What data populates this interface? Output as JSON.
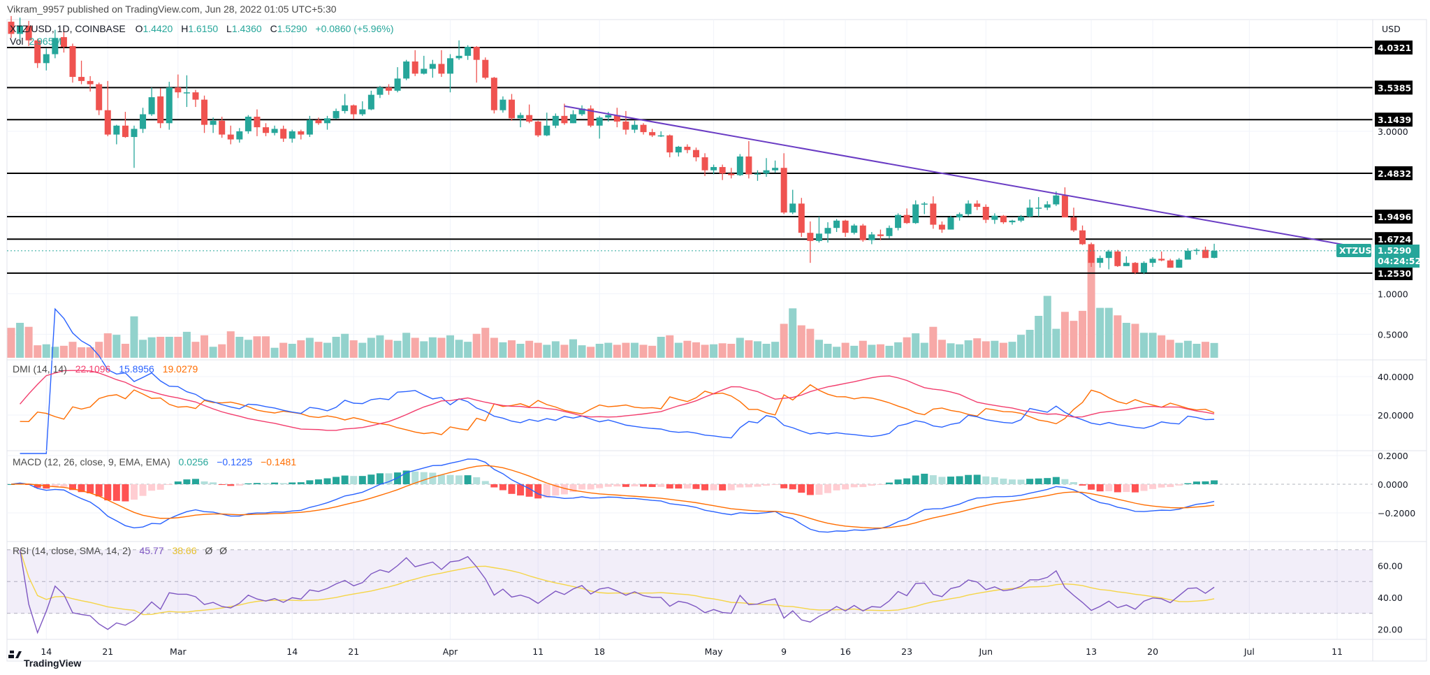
{
  "header": {
    "published": "Vikram_9957 published on TradingView.com, Jun 28, 2022 01:05 UTC+5:30"
  },
  "legend": {
    "symbol": "XTZ/USD, 1D, COINBASE",
    "o_label": "O",
    "o": "1.4420",
    "h_label": "H",
    "h": "1.6150",
    "l_label": "L",
    "l": "1.4360",
    "c_label": "C",
    "c": "1.5290",
    "change": "+0.0860 (+5.96%)",
    "vol_label": "Vol",
    "vol": "2.965M"
  },
  "price_axis": {
    "currency": "USD",
    "plain_ticks": [
      {
        "value": 3.0,
        "label": "3.0000"
      },
      {
        "value": 1.0,
        "label": "1.0000"
      },
      {
        "value": 0.5,
        "label": "0.5000"
      }
    ],
    "levels": [
      {
        "value": 4.0321,
        "label": "4.0321"
      },
      {
        "value": 3.5385,
        "label": "3.5385"
      },
      {
        "value": 3.1439,
        "label": "3.1439"
      },
      {
        "value": 2.4832,
        "label": "2.4832"
      },
      {
        "value": 1.9496,
        "label": "1.9496"
      },
      {
        "value": 1.6724,
        "label": "1.6724"
      },
      {
        "value": 1.253,
        "label": "1.2530"
      }
    ],
    "current": {
      "symbol_tag": "XTZUSD",
      "price": "1.5290",
      "countdown": "04:24:52",
      "value": 1.529
    }
  },
  "dmi": {
    "title": "DMI (14, 14)",
    "adx": "22.1096",
    "plus_di": "15.8956",
    "minus_di": "19.0279",
    "ticks": [
      {
        "value": 40,
        "label": "40.0000"
      },
      {
        "value": 20,
        "label": "20.0000"
      }
    ]
  },
  "macd": {
    "title": "MACD (12, 26, close, 9, EMA, EMA)",
    "hist": "0.0256",
    "macd": "−0.1225",
    "signal": "−0.1481",
    "ticks": [
      {
        "value": 0.2,
        "label": "0.2000"
      },
      {
        "value": 0,
        "label": "0.0000"
      },
      {
        "value": -0.2,
        "label": "−0.2000"
      }
    ]
  },
  "rsi": {
    "title": "RSI (14, close, SMA, 14, 2)",
    "rsi": "45.77",
    "sma": "38.66",
    "extra1": "Ø",
    "extra2": "Ø",
    "ticks": [
      {
        "value": 60,
        "label": "60.00"
      },
      {
        "value": 40,
        "label": "40.00"
      },
      {
        "value": 20,
        "label": "20.00"
      }
    ]
  },
  "footer": {
    "brand": "TradingView"
  },
  "colors": {
    "up": "#26a69a",
    "down": "#ef5350",
    "vol_up": "#92d2cc",
    "vol_down": "#f7a9a7",
    "adx": "#f23d6d",
    "plus_di": "#2962ff",
    "minus_di": "#ff6d00",
    "macd": "#2962ff",
    "signal": "#ff6d00",
    "rsi": "#7e57c2",
    "rsi_sma": "#f5d547",
    "trendline": "#6a3cc4"
  },
  "chart_data": {
    "type": "candlestick",
    "symbol": "XTZ/USD",
    "interval": "1D",
    "ohlc_by_month": {
      "2022-02": [
        [
          10,
          4.35,
          4.42,
          4.15,
          4.2
        ],
        [
          11,
          4.2,
          4.4,
          4.1,
          4.3
        ],
        [
          12,
          4.3,
          4.36,
          4.05,
          4.12
        ],
        [
          13,
          4.12,
          4.14,
          3.78,
          3.84
        ],
        [
          14,
          3.84,
          4.02,
          3.75,
          3.95
        ],
        [
          15,
          3.95,
          4.25,
          3.9,
          4.15
        ],
        [
          16,
          4.16,
          4.26,
          3.97,
          4.04
        ],
        [
          17,
          4.05,
          4.08,
          3.6,
          3.67
        ],
        [
          18,
          3.67,
          3.87,
          3.58,
          3.62
        ],
        [
          19,
          3.62,
          3.68,
          3.49,
          3.58
        ],
        [
          20,
          3.58,
          3.6,
          3.2,
          3.26
        ],
        [
          21,
          3.26,
          3.62,
          2.94,
          2.96
        ],
        [
          22,
          2.96,
          3.08,
          2.84,
          3.07
        ],
        [
          23,
          3.07,
          3.24,
          2.92,
          2.93
        ],
        [
          24,
          2.93,
          3.07,
          2.55,
          3.03
        ],
        [
          25,
          3.03,
          3.29,
          2.98,
          3.21
        ],
        [
          26,
          3.21,
          3.54,
          3.19,
          3.42
        ],
        [
          27,
          3.43,
          3.53,
          3.04,
          3.1
        ],
        [
          28,
          3.1,
          3.61,
          3.02,
          3.54
        ]
      ],
      "2022-03": [
        [
          1,
          3.54,
          3.7,
          3.41,
          3.48
        ],
        [
          2,
          3.48,
          3.69,
          3.3,
          3.48
        ],
        [
          3,
          3.48,
          3.51,
          3.3,
          3.39
        ],
        [
          4,
          3.39,
          3.44,
          2.98,
          3.08
        ],
        [
          5,
          3.08,
          3.17,
          2.98,
          3.13
        ],
        [
          6,
          3.13,
          3.18,
          2.92,
          2.96
        ],
        [
          7,
          2.96,
          3.07,
          2.84,
          2.9
        ],
        [
          8,
          2.9,
          3.04,
          2.86,
          3.0
        ],
        [
          9,
          3.0,
          3.2,
          2.97,
          3.18
        ],
        [
          10,
          3.18,
          3.27,
          2.94,
          3.05
        ],
        [
          11,
          3.05,
          3.1,
          2.94,
          2.98
        ],
        [
          12,
          2.98,
          3.07,
          2.95,
          3.03
        ],
        [
          13,
          3.03,
          3.07,
          2.87,
          2.91
        ],
        [
          14,
          2.91,
          3.02,
          2.86,
          3.0
        ],
        [
          15,
          3.0,
          3.02,
          2.9,
          2.96
        ],
        [
          16,
          2.96,
          3.19,
          2.93,
          3.14
        ],
        [
          17,
          3.14,
          3.17,
          3.08,
          3.1
        ],
        [
          18,
          3.1,
          3.19,
          3.02,
          3.16
        ],
        [
          19,
          3.16,
          3.28,
          3.15,
          3.25
        ],
        [
          20,
          3.25,
          3.46,
          3.22,
          3.32
        ],
        [
          21,
          3.32,
          3.33,
          3.15,
          3.21
        ],
        [
          22,
          3.21,
          3.37,
          3.19,
          3.27
        ],
        [
          23,
          3.27,
          3.5,
          3.26,
          3.45
        ],
        [
          24,
          3.45,
          3.56,
          3.41,
          3.54
        ],
        [
          25,
          3.54,
          3.58,
          3.45,
          3.5
        ],
        [
          26,
          3.5,
          3.79,
          3.48,
          3.65
        ],
        [
          27,
          3.65,
          3.88,
          3.63,
          3.86
        ],
        [
          28,
          3.86,
          4.0,
          3.68,
          3.71
        ],
        [
          29,
          3.71,
          3.93,
          3.7,
          3.77
        ],
        [
          30,
          3.77,
          3.88,
          3.66,
          3.83
        ],
        [
          31,
          3.83,
          4.0,
          3.67,
          3.71
        ]
      ],
      "2022-04": [
        [
          1,
          3.71,
          3.95,
          3.48,
          3.9
        ],
        [
          2,
          3.9,
          4.12,
          3.88,
          3.93
        ],
        [
          3,
          3.93,
          4.06,
          3.88,
          4.04
        ],
        [
          4,
          4.04,
          4.05,
          3.6,
          3.88
        ],
        [
          5,
          3.88,
          3.91,
          3.64,
          3.66
        ],
        [
          6,
          3.66,
          3.67,
          3.22,
          3.26
        ],
        [
          7,
          3.26,
          3.43,
          3.23,
          3.39
        ],
        [
          8,
          3.39,
          3.46,
          3.13,
          3.16
        ],
        [
          9,
          3.16,
          3.23,
          3.05,
          3.2
        ],
        [
          10,
          3.2,
          3.33,
          3.1,
          3.12
        ],
        [
          11,
          3.12,
          3.13,
          2.93,
          2.95
        ],
        [
          12,
          2.95,
          3.23,
          2.94,
          3.07
        ],
        [
          13,
          3.07,
          3.22,
          3.04,
          3.19
        ],
        [
          14,
          3.19,
          3.34,
          3.08,
          3.1
        ],
        [
          15,
          3.1,
          3.26,
          3.1,
          3.21
        ],
        [
          16,
          3.21,
          3.32,
          3.19,
          3.28
        ],
        [
          17,
          3.28,
          3.32,
          3.05,
          3.07
        ],
        [
          18,
          3.07,
          3.19,
          2.91,
          3.17
        ],
        [
          19,
          3.17,
          3.24,
          3.12,
          3.2
        ],
        [
          20,
          3.2,
          3.29,
          3.05,
          3.12
        ],
        [
          21,
          3.12,
          3.25,
          2.96,
          3.02
        ],
        [
          22,
          3.02,
          3.13,
          2.98,
          3.08
        ],
        [
          23,
          3.08,
          3.1,
          2.96,
          2.99
        ],
        [
          24,
          2.99,
          3.03,
          2.93,
          2.95
        ],
        [
          25,
          2.95,
          3.0,
          2.93,
          2.95
        ],
        [
          26,
          2.95,
          2.96,
          2.68,
          2.74
        ],
        [
          27,
          2.74,
          2.82,
          2.69,
          2.81
        ],
        [
          28,
          2.81,
          2.84,
          2.73,
          2.77
        ],
        [
          29,
          2.77,
          2.8,
          2.63,
          2.68
        ],
        [
          30,
          2.68,
          2.73,
          2.45,
          2.52
        ]
      ],
      "2022-05": [
        [
          1,
          2.52,
          2.59,
          2.47,
          2.56
        ],
        [
          2,
          2.56,
          2.59,
          2.4,
          2.48
        ],
        [
          3,
          2.48,
          2.55,
          2.42,
          2.46
        ],
        [
          4,
          2.46,
          2.72,
          2.45,
          2.69
        ],
        [
          5,
          2.69,
          2.88,
          2.42,
          2.47
        ],
        [
          6,
          2.47,
          2.52,
          2.39,
          2.48
        ],
        [
          7,
          2.48,
          2.67,
          2.44,
          2.52
        ],
        [
          8,
          2.52,
          2.64,
          2.49,
          2.55
        ],
        [
          9,
          2.55,
          2.73,
          1.98,
          2.0
        ],
        [
          10,
          2.0,
          2.28,
          1.98,
          2.11
        ],
        [
          11,
          2.11,
          2.18,
          1.7,
          1.75
        ],
        [
          12,
          1.75,
          1.89,
          1.38,
          1.65
        ],
        [
          13,
          1.65,
          1.95,
          1.63,
          1.74
        ],
        [
          14,
          1.74,
          1.88,
          1.63,
          1.81
        ],
        [
          15,
          1.81,
          1.92,
          1.76,
          1.9
        ],
        [
          16,
          1.9,
          1.91,
          1.7,
          1.75
        ],
        [
          17,
          1.75,
          1.86,
          1.73,
          1.84
        ],
        [
          18,
          1.84,
          1.86,
          1.64,
          1.66
        ],
        [
          19,
          1.66,
          1.76,
          1.61,
          1.73
        ],
        [
          20,
          1.73,
          1.79,
          1.66,
          1.71
        ],
        [
          21,
          1.71,
          1.84,
          1.68,
          1.81
        ],
        [
          22,
          1.81,
          1.99,
          1.78,
          1.97
        ],
        [
          23,
          1.97,
          2.05,
          1.86,
          1.87
        ],
        [
          24,
          1.87,
          2.15,
          1.86,
          2.1
        ],
        [
          25,
          2.1,
          2.13,
          1.98,
          2.11
        ],
        [
          26,
          2.11,
          2.2,
          1.8,
          1.85
        ],
        [
          27,
          1.85,
          1.89,
          1.75,
          1.79
        ],
        [
          28,
          1.79,
          1.96,
          1.79,
          1.94
        ],
        [
          29,
          1.94,
          2.0,
          1.9,
          1.98
        ],
        [
          30,
          1.98,
          2.15,
          1.96,
          2.11
        ],
        [
          31,
          2.11,
          2.15,
          2.03,
          2.07
        ]
      ],
      "2022-06": [
        [
          1,
          2.07,
          2.1,
          1.87,
          1.91
        ],
        [
          2,
          1.91,
          1.99,
          1.86,
          1.96
        ],
        [
          3,
          1.96,
          1.97,
          1.86,
          1.88
        ],
        [
          4,
          1.88,
          1.91,
          1.85,
          1.9
        ],
        [
          5,
          1.9,
          1.97,
          1.88,
          1.95
        ],
        [
          6,
          1.95,
          2.16,
          1.94,
          2.06
        ],
        [
          7,
          2.06,
          2.19,
          1.95,
          2.06
        ],
        [
          8,
          2.06,
          2.14,
          2.03,
          2.1
        ],
        [
          9,
          2.1,
          2.26,
          2.08,
          2.21
        ],
        [
          10,
          2.21,
          2.31,
          1.95,
          1.94
        ],
        [
          11,
          1.94,
          2.06,
          1.76,
          1.78
        ],
        [
          12,
          1.78,
          1.84,
          1.6,
          1.61
        ],
        [
          13,
          1.61,
          1.63,
          1.33,
          1.38
        ],
        [
          14,
          1.38,
          1.47,
          1.32,
          1.44
        ],
        [
          15,
          1.44,
          1.54,
          1.3,
          1.52
        ],
        [
          16,
          1.52,
          1.54,
          1.33,
          1.34
        ],
        [
          17,
          1.34,
          1.46,
          1.34,
          1.38
        ],
        [
          18,
          1.38,
          1.39,
          1.24,
          1.26
        ],
        [
          19,
          1.26,
          1.4,
          1.24,
          1.38
        ],
        [
          20,
          1.38,
          1.45,
          1.33,
          1.43
        ],
        [
          21,
          1.43,
          1.52,
          1.4,
          1.41
        ],
        [
          22,
          1.41,
          1.43,
          1.32,
          1.32
        ],
        [
          23,
          1.32,
          1.44,
          1.32,
          1.42
        ],
        [
          24,
          1.42,
          1.56,
          1.42,
          1.53
        ],
        [
          25,
          1.53,
          1.56,
          1.48,
          1.54
        ],
        [
          26,
          1.54,
          1.58,
          1.44,
          1.44
        ],
        [
          27,
          1.442,
          1.615,
          1.436,
          1.529
        ]
      ]
    },
    "volume_millions": [
      6.0,
      7.0,
      6.2,
      2.5,
      2.7,
      2.2,
      2.4,
      3.2,
      2.1,
      2.1,
      3.2,
      4.9,
      4.6,
      2.8,
      8.3,
      3.6,
      4.1,
      4.2,
      4.2,
      4.2,
      5.2,
      3.2,
      4.5,
      2.2,
      2.7,
      5.3,
      4.2,
      3.6,
      4.3,
      4.3,
      2.0,
      3.0,
      2.8,
      3.5,
      4.0,
      3.2,
      3.0,
      4.2,
      4.8,
      3.5,
      3.0,
      4.0,
      4.5,
      3.6,
      3.4,
      5.0,
      4.0,
      3.3,
      4.1,
      4.0,
      4.5,
      3.6,
      3.2,
      4.8,
      6.0,
      4.0,
      3.1,
      3.5,
      2.8,
      3.4,
      3.0,
      2.6,
      3.3,
      2.6,
      3.7,
      2.5,
      2.2,
      2.8,
      3.0,
      2.6,
      3.0,
      3.0,
      2.6,
      2.4,
      4.2,
      4.5,
      3.0,
      3.4,
      3.1,
      2.6,
      2.7,
      2.9,
      2.8,
      4.0,
      3.5,
      3.3,
      2.8,
      3.2,
      6.8,
      9.9,
      6.5,
      5.8,
      3.6,
      2.8,
      2.2,
      3.0,
      2.4,
      3.4,
      2.6,
      2.7,
      2.4,
      3.1,
      4.1,
      4.9,
      3.0,
      6.2,
      3.6,
      2.9,
      2.7,
      3.5,
      3.9,
      3.3,
      3.4,
      3.0,
      3.2,
      4.6,
      5.6,
      8.4,
      12.4,
      5.8,
      9.2,
      7.4,
      9.4,
      21.6,
      10.0,
      10.0,
      8.5,
      7.0,
      6.8,
      5.0,
      5.0,
      4.5,
      3.6,
      3.0,
      3.4,
      2.8,
      3.2,
      2.965
    ],
    "trendline": [
      [
        "2022-04-14",
        3.31
      ],
      [
        "2022-07-13",
        1.58
      ]
    ],
    "x_ticks": [
      {
        "date": "2022-02-14",
        "label": "14"
      },
      {
        "date": "2022-02-21",
        "label": "21"
      },
      {
        "date": "2022-03-01",
        "label": "Mar"
      },
      {
        "date": "2022-03-14",
        "label": "14"
      },
      {
        "date": "2022-03-21",
        "label": "21"
      },
      {
        "date": "2022-04-01",
        "label": "Apr"
      },
      {
        "date": "2022-04-11",
        "label": "11"
      },
      {
        "date": "2022-04-18",
        "label": "18"
      },
      {
        "date": "2022-05-01",
        "label": "May"
      },
      {
        "date": "2022-05-09",
        "label": "9"
      },
      {
        "date": "2022-05-16",
        "label": "16"
      },
      {
        "date": "2022-05-23",
        "label": "23"
      },
      {
        "date": "2022-06-01",
        "label": "Jun"
      },
      {
        "date": "2022-06-13",
        "label": "13"
      },
      {
        "date": "2022-06-20",
        "label": "20"
      },
      {
        "date": "2022-07-01",
        "label": "Jul"
      },
      {
        "date": "2022-07-11",
        "label": "11"
      }
    ],
    "rsi_band": [
      30,
      70
    ],
    "grid": true
  }
}
